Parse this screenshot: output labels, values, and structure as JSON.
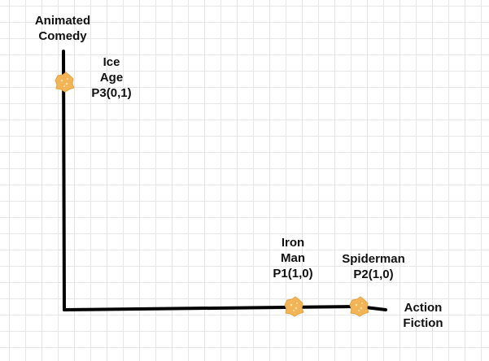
{
  "axes": {
    "y_label": [
      "Animated",
      "Comedy"
    ],
    "x_label": [
      "Action",
      "Fiction"
    ],
    "line_color": "#000000"
  },
  "points": [
    {
      "lines": [
        "Ice",
        "Age",
        "P3(0,1)"
      ],
      "coords": [
        0,
        1
      ]
    },
    {
      "lines": [
        "Iron",
        "Man",
        "P1(1,0)"
      ],
      "coords": [
        1,
        0
      ]
    },
    {
      "lines": [
        "Spiderman",
        "P2(1,0)"
      ],
      "coords": [
        1,
        0
      ]
    }
  ],
  "marker": {
    "icon": "splat-icon",
    "color": "#f2b457"
  }
}
